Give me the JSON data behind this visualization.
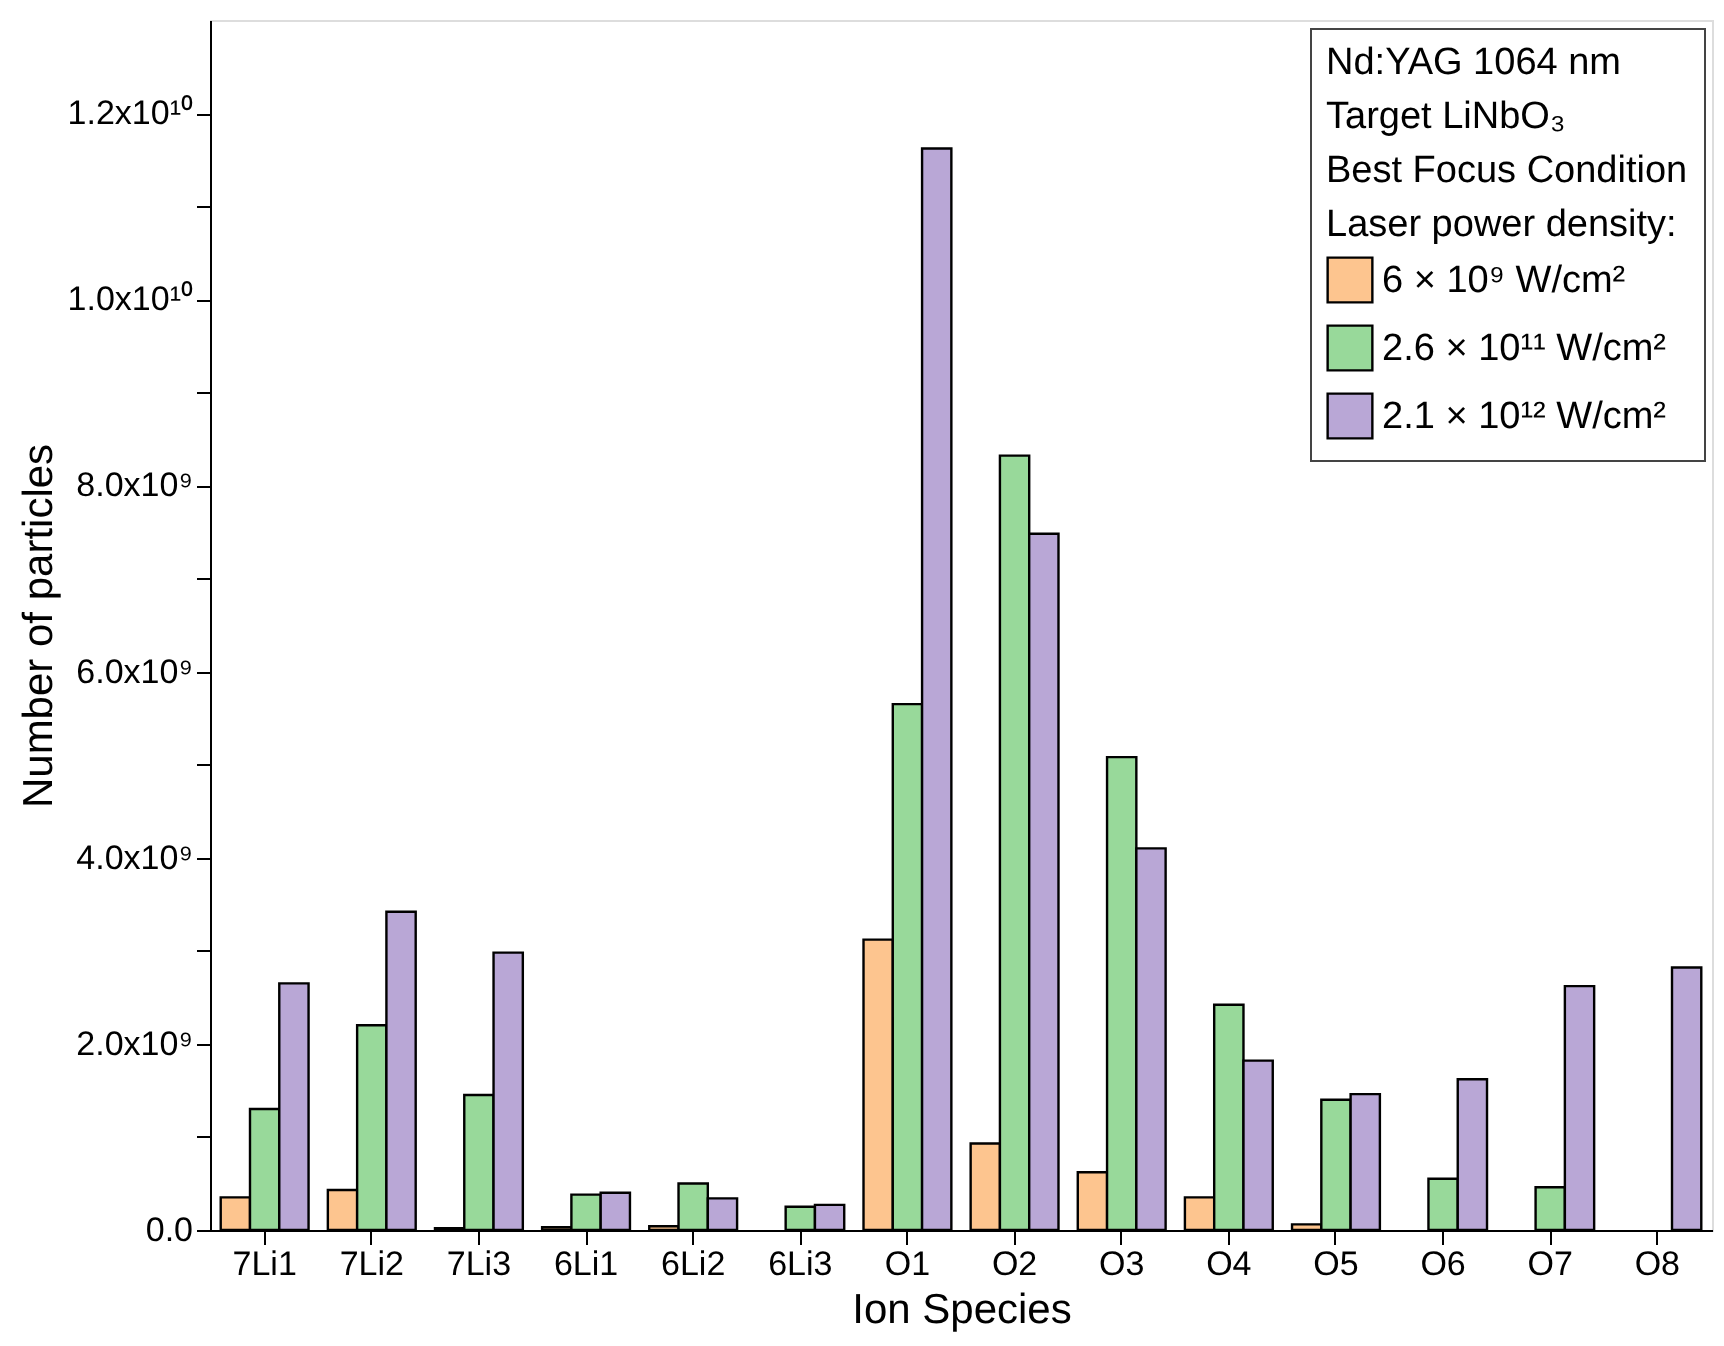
{
  "chart_data": {
    "type": "bar",
    "xlabel": "Ion Species",
    "ylabel": "Number of particles",
    "legend_title": "Nd:YAG 1064 nm\nTarget LiNbO₃\nBest Focus Condition\nLaser power density:",
    "categories": [
      "7Li1",
      "7Li2",
      "7Li3",
      "6Li1",
      "6Li2",
      "6Li3",
      "O1",
      "O2",
      "O3",
      "O4",
      "O5",
      "O6",
      "O7",
      "O8"
    ],
    "series": [
      {
        "name": "6 × 10⁹ W/cm²",
        "color": "#fdc58f",
        "values": [
          350000000.0,
          430000000.0,
          20000000.0,
          30000000.0,
          40000000.0,
          null,
          3120000000.0,
          930000000.0,
          620000000.0,
          350000000.0,
          60000000.0,
          null,
          null,
          null
        ]
      },
      {
        "name": "2.6 × 10¹¹ W/cm²",
        "color": "#98d99a",
        "values": [
          1300000000.0,
          2200000000.0,
          1450000000.0,
          380000000.0,
          500000000.0,
          250000000.0,
          5650000000.0,
          8320000000.0,
          5080000000.0,
          2420000000.0,
          1400000000.0,
          550000000.0,
          460000000.0,
          null
        ]
      },
      {
        "name": "2.1 × 10¹² W/cm²",
        "color": "#b9a7d6",
        "values": [
          2650000000.0,
          3420000000.0,
          2980000000.0,
          400000000.0,
          340000000.0,
          270000000.0,
          11620000000.0,
          7480000000.0,
          4100000000.0,
          1820000000.0,
          1460000000.0,
          1620000000.0,
          2620000000.0,
          2820000000.0
        ]
      }
    ],
    "ylim": [
      0,
      13000000000.0
    ],
    "yticks": [
      {
        "value": 0,
        "label": "0.0"
      },
      {
        "value": 1000000000.0,
        "label": null
      },
      {
        "value": 2000000000.0,
        "label": "2.0x10⁹"
      },
      {
        "value": 3000000000.0,
        "label": null
      },
      {
        "value": 4000000000.0,
        "label": "4.0x10⁹"
      },
      {
        "value": 5000000000.0,
        "label": null
      },
      {
        "value": 6000000000.0,
        "label": "6.0x10⁹"
      },
      {
        "value": 7000000000.0,
        "label": null
      },
      {
        "value": 8000000000.0,
        "label": "8.0x10⁹"
      },
      {
        "value": 9000000000.0,
        "label": null
      },
      {
        "value": 10000000000.0,
        "label": "1.0x10¹⁰"
      },
      {
        "value": 11000000000.0,
        "label": null
      },
      {
        "value": 12000000000.0,
        "label": "1.2x10¹⁰"
      }
    ],
    "grid": false,
    "legend": "top right"
  }
}
